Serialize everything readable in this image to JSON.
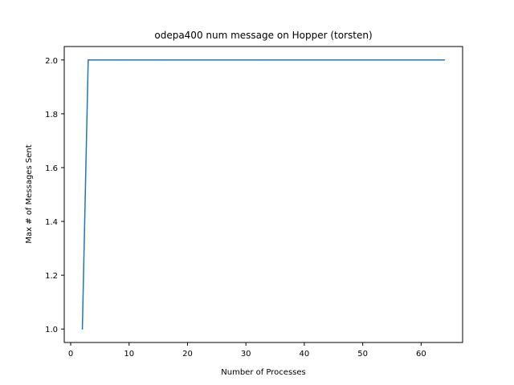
{
  "chart_data": {
    "type": "line",
    "title": "odepa400 num message on Hopper (torsten)",
    "xlabel": "Number of Processes",
    "ylabel": "Max # of Messages Sent",
    "xlim": [
      -1.1,
      67.1
    ],
    "ylim": [
      0.95,
      2.05
    ],
    "grid": false,
    "x_ticks": [
      0,
      10,
      20,
      30,
      40,
      50,
      60
    ],
    "y_ticks": [
      1.0,
      1.2,
      1.4,
      1.6,
      1.8,
      2.0
    ],
    "x_tick_labels": [
      "0",
      "10",
      "20",
      "30",
      "40",
      "50",
      "60"
    ],
    "y_tick_labels": [
      "1.0",
      "1.2",
      "1.4",
      "1.6",
      "1.8",
      "2.0"
    ],
    "series": [
      {
        "color": "#1f77b4",
        "x": [
          2,
          3,
          4,
          8,
          16,
          32,
          64
        ],
        "y": [
          1.0,
          2.0,
          2.0,
          2.0,
          2.0,
          2.0,
          2.0
        ]
      }
    ]
  }
}
